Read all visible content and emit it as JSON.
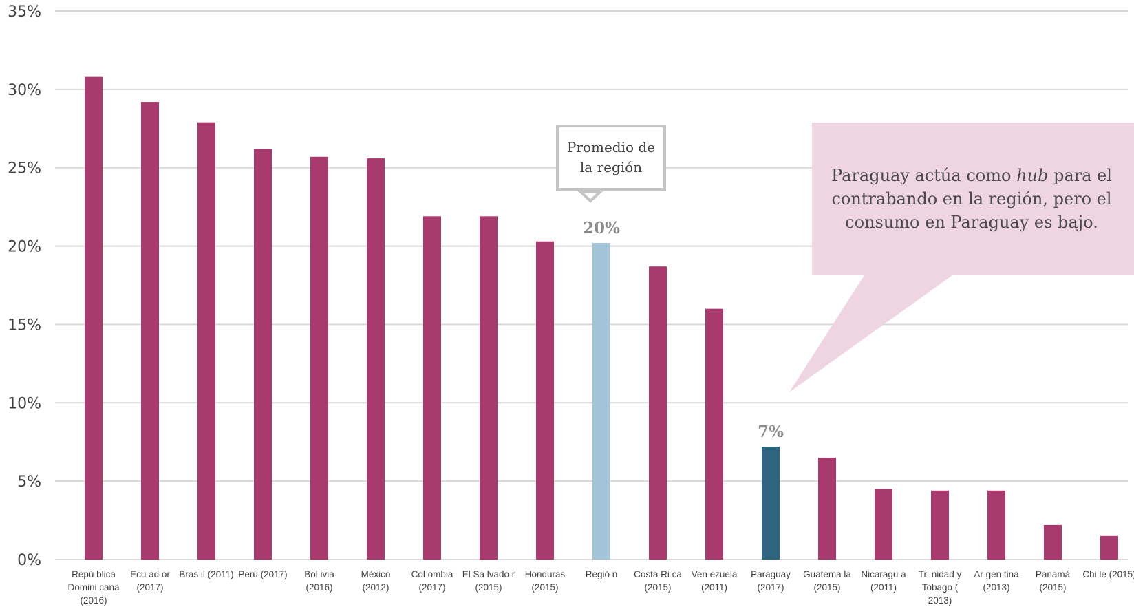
{
  "chart_data": {
    "type": "bar",
    "categories": [
      [
        "Repú blica",
        "Domini cana",
        "(2016)"
      ],
      [
        "Ecu ad or",
        "(2017)"
      ],
      [
        "Bras il (2011)"
      ],
      [
        "Perú (2017)"
      ],
      [
        "Bol ivia",
        "(2016)"
      ],
      [
        "México",
        "(2012)"
      ],
      [
        "Col ombia",
        "(2017)"
      ],
      [
        "El Sa lvado r",
        "(2015)"
      ],
      [
        "Honduras",
        "(2015)"
      ],
      [
        "Regió n"
      ],
      [
        "Costa Ri ca",
        "(2015)"
      ],
      [
        "Ven ezuela",
        "(2011)"
      ],
      [
        "Paraguay",
        "(2017)"
      ],
      [
        "Guatema la",
        "(2015)"
      ],
      [
        "Nicaragu a",
        "(2011)"
      ],
      [
        "Tri nidad y",
        "Tobago (",
        "2013)"
      ],
      [
        "Ar gen tina",
        "(2013)"
      ],
      [
        "Panamá",
        "(2015)"
      ],
      [
        "Chi le (2015)"
      ]
    ],
    "values": [
      30.8,
      29.2,
      27.9,
      26.2,
      25.7,
      25.6,
      21.9,
      21.9,
      20.3,
      20.2,
      18.7,
      16.0,
      7.2,
      6.5,
      4.5,
      4.4,
      4.4,
      2.2,
      1.5
    ],
    "ylim": [
      0,
      35
    ],
    "yticks": [
      "0%",
      "5%",
      "10%",
      "15%",
      "20%",
      "25%",
      "30%",
      "35%"
    ],
    "grid": true,
    "colors": {
      "default": "#a83a6e",
      "region": "#a3c4d8",
      "highlight": "#2e6480",
      "grid": "#d9d9d9"
    },
    "bar_colors": [
      "default",
      "default",
      "default",
      "default",
      "default",
      "default",
      "default",
      "default",
      "default",
      "region",
      "default",
      "default",
      "highlight",
      "default",
      "default",
      "default",
      "default",
      "default",
      "default"
    ],
    "data_labels": [
      {
        "index": 9,
        "text": "20%"
      },
      {
        "index": 12,
        "text": "7%"
      }
    ],
    "annotations": {
      "region_callout": "Promedio de la región",
      "note_before": "Paraguay actúa como ",
      "note_italic": "hub",
      "note_after": " para el contrabando en la región, pero el consumo en Paraguay es bajo.",
      "note_color": "#efd5e1"
    }
  }
}
